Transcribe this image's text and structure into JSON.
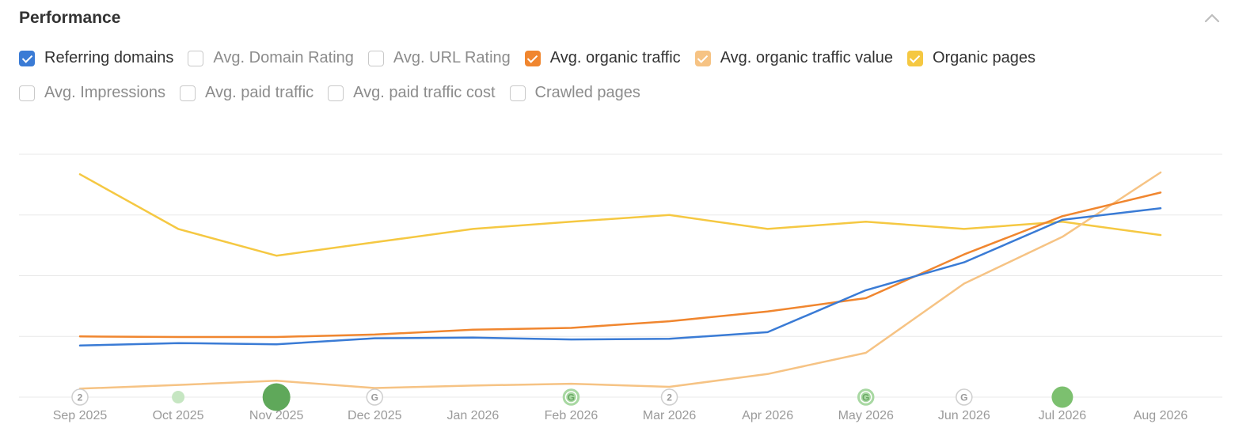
{
  "header": {
    "title": "Performance",
    "collapse_icon": "chevron-up-icon"
  },
  "metrics": [
    {
      "label": "Referring domains",
      "checked": true,
      "color": "#3a7bd5"
    },
    {
      "label": "Avg. Domain Rating",
      "checked": false
    },
    {
      "label": "Avg. URL Rating",
      "checked": false
    },
    {
      "label": "Avg. organic traffic",
      "checked": true,
      "color": "#f0862f"
    },
    {
      "label": "Avg. organic traffic value",
      "checked": true,
      "color": "#f6c384"
    },
    {
      "label": "Organic pages",
      "checked": true,
      "color": "#f5c842"
    },
    {
      "label": "Avg. Impressions",
      "checked": false
    },
    {
      "label": "Avg. paid traffic",
      "checked": false
    },
    {
      "label": "Avg. paid traffic cost",
      "checked": false
    },
    {
      "label": "Crawled pages",
      "checked": false
    }
  ],
  "chart_data": {
    "type": "line",
    "x": [
      "Sep 2025",
      "Oct 2025",
      "Nov 2025",
      "Dec 2025",
      "Jan 2026",
      "Feb 2026",
      "Mar 2026",
      "Apr 2026",
      "May 2026",
      "Jun 2026",
      "Jul 2026",
      "Aug 2026"
    ],
    "ylim": [
      0,
      4
    ],
    "grid": true,
    "series": [
      {
        "name": "Organic pages",
        "color": "#f5c842",
        "values": [
          3.67,
          2.77,
          2.33,
          2.55,
          2.77,
          2.89,
          3.0,
          2.77,
          2.89,
          2.77,
          2.89,
          2.67
        ]
      },
      {
        "name": "Avg. organic traffic value",
        "color": "#f6c384",
        "values": [
          0.14,
          0.2,
          0.27,
          0.15,
          0.19,
          0.22,
          0.17,
          0.38,
          0.73,
          1.87,
          2.64,
          3.7
        ]
      },
      {
        "name": "Avg. organic traffic",
        "color": "#f0862f",
        "values": [
          1.0,
          0.99,
          0.99,
          1.03,
          1.11,
          1.14,
          1.25,
          1.41,
          1.63,
          2.35,
          2.98,
          3.37
        ]
      },
      {
        "name": "Referring domains",
        "color": "#3a7bd5",
        "values": [
          0.85,
          0.89,
          0.87,
          0.97,
          0.98,
          0.95,
          0.96,
          1.07,
          1.76,
          2.22,
          2.92,
          3.11
        ]
      }
    ],
    "annotations": [
      {
        "x": "Sep 2025",
        "kind": "number",
        "label": "2"
      },
      {
        "x": "Oct 2025",
        "kind": "dot",
        "size": "small",
        "color": "#c6e6c2"
      },
      {
        "x": "Nov 2025",
        "kind": "dot",
        "size": "large",
        "color": "#5fa85a"
      },
      {
        "x": "Dec 2025",
        "kind": "google",
        "label": "G"
      },
      {
        "x": "Feb 2026",
        "kind": "google-dot",
        "label": "G",
        "color": "#a8d8a2"
      },
      {
        "x": "Mar 2026",
        "kind": "number",
        "label": "2"
      },
      {
        "x": "May 2026",
        "kind": "google-dot",
        "label": "G",
        "color": "#a8d8a2"
      },
      {
        "x": "Jun 2026",
        "kind": "google",
        "label": "G"
      },
      {
        "x": "Jul 2026",
        "kind": "dot",
        "size": "medium",
        "color": "#7cc06f"
      }
    ]
  }
}
